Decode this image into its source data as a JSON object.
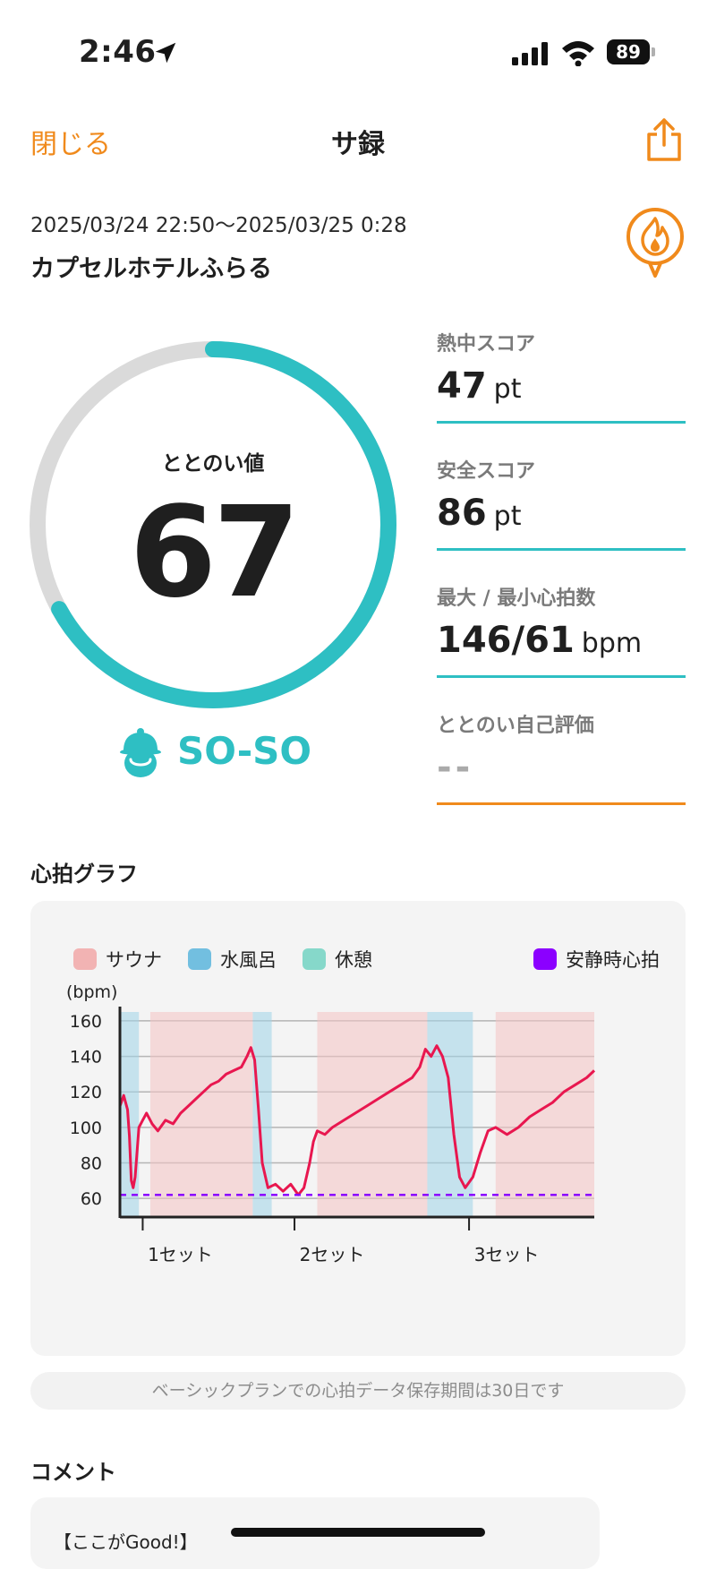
{
  "status_bar": {
    "time": "2:46",
    "battery": "89"
  },
  "nav": {
    "close_label": "閉じる",
    "title": "サ録"
  },
  "session": {
    "date_range": "2025/03/24 22:50〜2025/03/25 0:28",
    "facility": "カプセルホテルふらる"
  },
  "gauge": {
    "label": "ととのい値",
    "value": "67",
    "fraction": 0.67,
    "rating": "SO-SO"
  },
  "stats": [
    {
      "label": "熱中スコア",
      "value": "47",
      "unit": "pt"
    },
    {
      "label": "安全スコア",
      "value": "86",
      "unit": "pt"
    },
    {
      "label": "最大 / 最小心拍数",
      "value": "146/61",
      "unit": "bpm"
    },
    {
      "label": "ととのい自己評価",
      "value": "--",
      "unit": ""
    }
  ],
  "graph": {
    "section_title": "心拍グラフ",
    "legend": [
      {
        "label": "サウナ",
        "color": "#f2b3b3"
      },
      {
        "label": "水風呂",
        "color": "#72bfe0"
      },
      {
        "label": "休憩",
        "color": "#86d8ca"
      },
      {
        "label": "安静時心拍",
        "color": "#8b00ff"
      }
    ]
  },
  "chart_data": {
    "type": "line",
    "ylabel": "(bpm)",
    "yticks": [
      "160",
      "140",
      "120",
      "100",
      "80",
      "60"
    ],
    "ylim": [
      50,
      165
    ],
    "xlabels": [
      "1セット",
      "2セット",
      "3セット"
    ],
    "resting_hr": 62,
    "grid": true,
    "legend_position": "top",
    "series": [
      {
        "name": "サウナ",
        "color": "#e8174f",
        "points": [
          [
            6,
            114
          ],
          [
            12,
            118
          ],
          [
            18,
            108
          ],
          [
            23,
            96
          ],
          [
            27,
            102
          ],
          [
            33,
            94
          ],
          [
            42,
            96
          ],
          [
            55,
            104
          ],
          [
            70,
            113
          ],
          [
            85,
            121
          ],
          [
            100,
            128
          ],
          [
            115,
            132
          ],
          [
            125,
            135
          ],
          [
            130,
            145
          ]
        ]
      },
      {
        "name": "水風呂",
        "color": "#1e88e5",
        "points": [
          [
            1,
            112
          ],
          [
            2,
            114
          ],
          [
            4,
            118
          ],
          [
            5,
            110
          ],
          [
            5.5,
            95
          ],
          [
            6,
            70
          ],
          [
            7,
            66
          ],
          [
            8,
            72
          ]
        ]
      },
      {
        "name": "休憩",
        "color": "#888888",
        "points": [
          [
            0,
            118
          ],
          [
            1,
            112
          ]
        ]
      }
    ]
  },
  "data_note": "ベーシックプランでの心拍データ保存期間は30日です",
  "comment": {
    "section_title": "コメント",
    "text": "【ここがGood!】"
  }
}
